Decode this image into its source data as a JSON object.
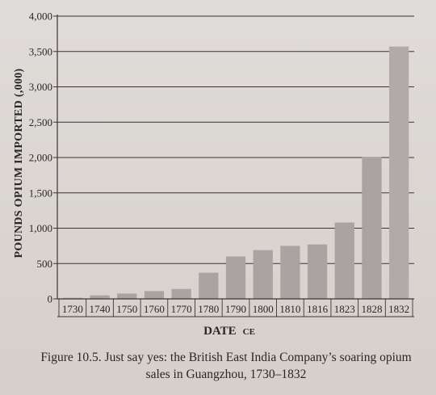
{
  "chart_data": {
    "type": "bar",
    "categories": [
      "1730",
      "1740",
      "1750",
      "1760",
      "1770",
      "1780",
      "1790",
      "1800",
      "1810",
      "1816",
      "1823",
      "1828",
      "1832"
    ],
    "values": [
      15,
      50,
      75,
      110,
      140,
      370,
      600,
      690,
      750,
      770,
      1080,
      2010,
      3570
    ],
    "ylabel": "POUNDS OPIUM IMPORTED (,000)",
    "xlabel_main": "DATE",
    "xlabel_suffix": "CE",
    "ylim": [
      0,
      4000
    ],
    "yticks": [
      "0",
      "500",
      "1,000",
      "1,500",
      "2,000",
      "2,500",
      "3,000",
      "3,500",
      "4,000"
    ],
    "ytick_values": [
      0,
      500,
      1000,
      1500,
      2000,
      2500,
      3000,
      3500,
      4000
    ],
    "grid": true,
    "colors": {
      "bar": "#aaa3a1",
      "bar_tall": "#b1aaa8",
      "grid": "#3a3434",
      "text": "#2a2626"
    }
  },
  "caption": {
    "line1": "Figure 10.5. Just say yes: the British East India Company’s soaring opium",
    "line2": "sales in Guangzhou, 1730–1832"
  }
}
